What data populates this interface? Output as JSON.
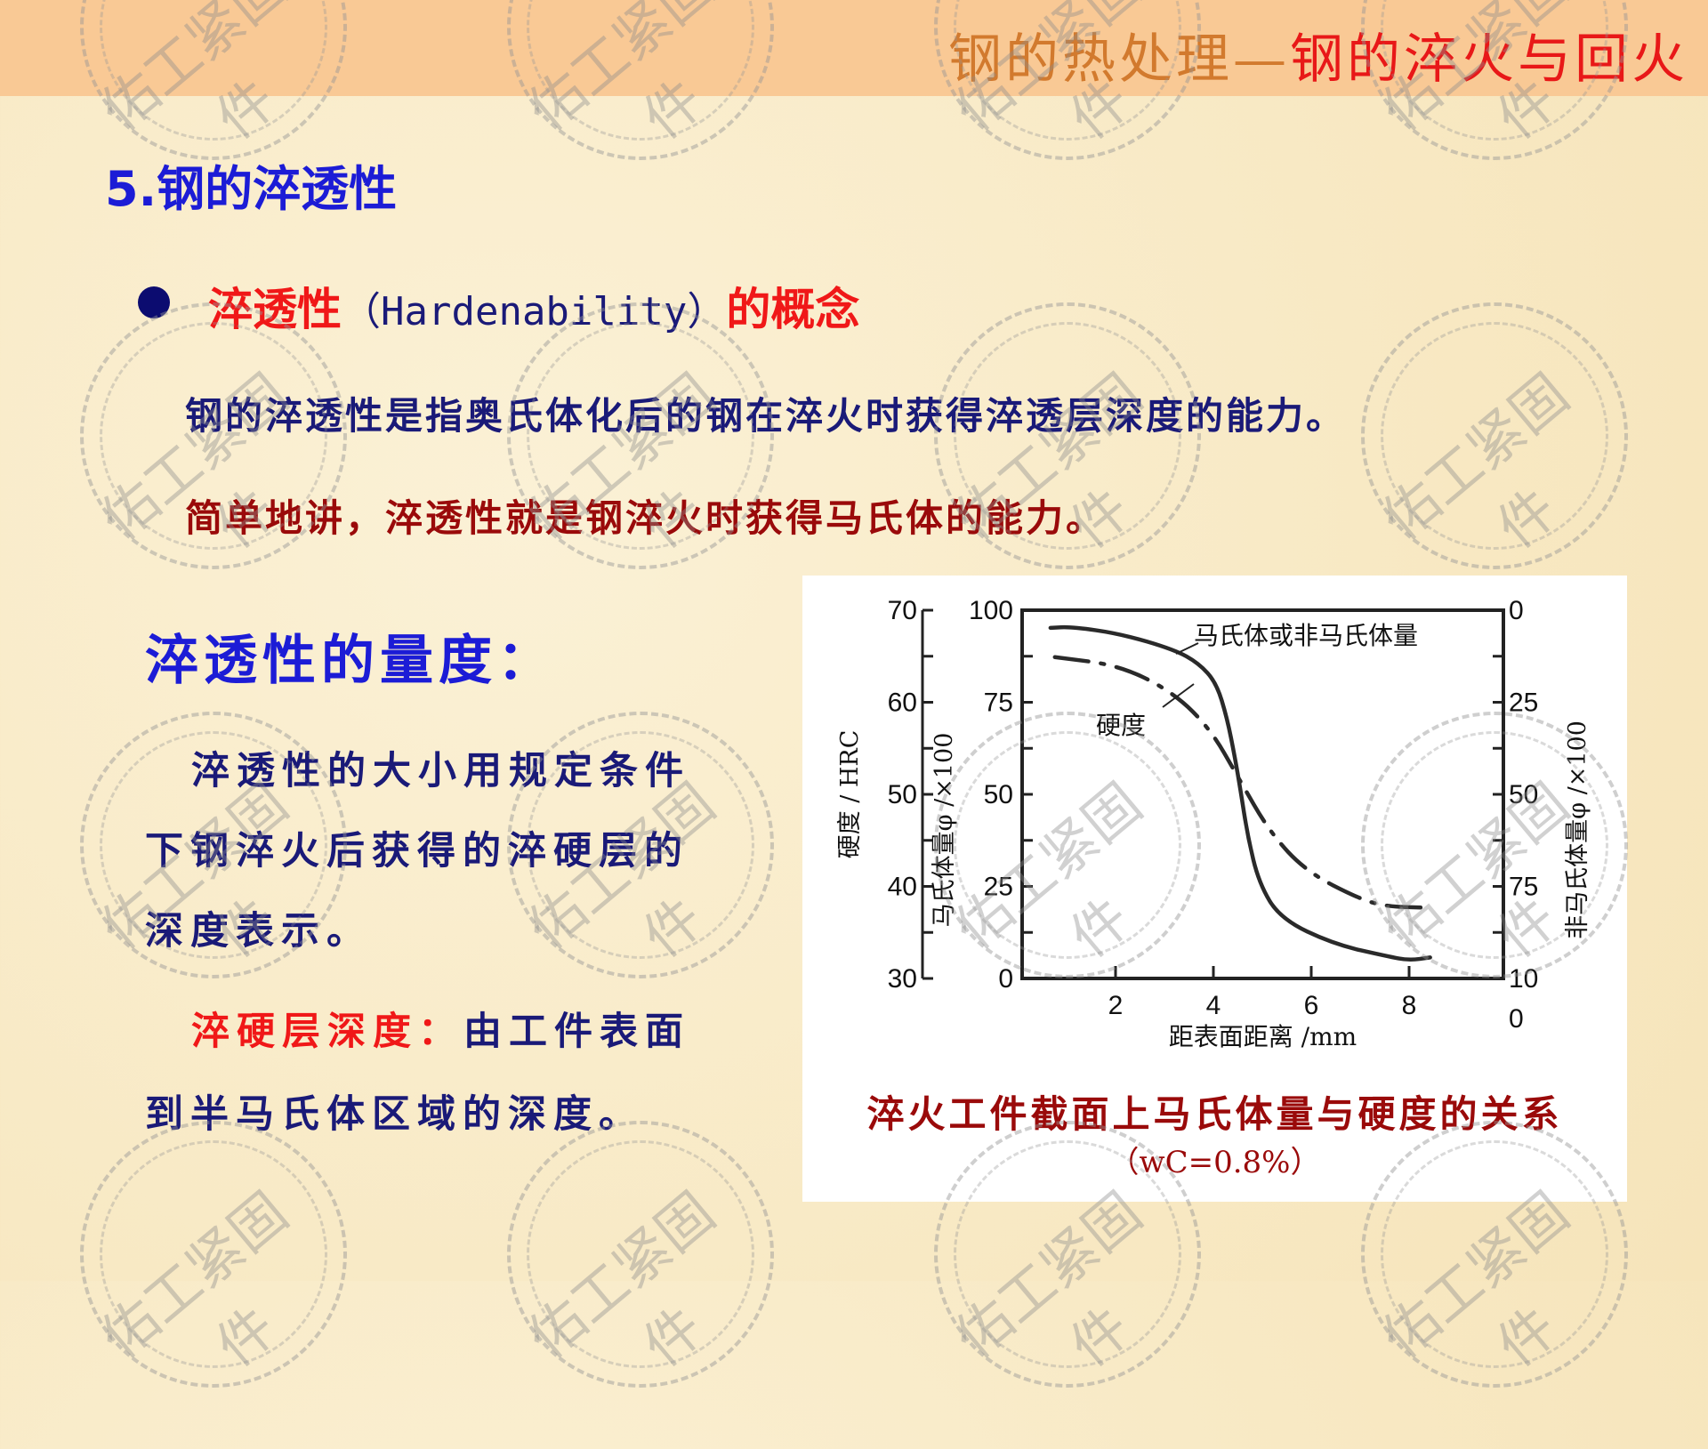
{
  "header": {
    "title_part1": "钢的热处理—",
    "title_part2": "钢的淬火与回火"
  },
  "section": {
    "title": "5.钢的淬透性"
  },
  "concept": {
    "red1": "淬透性",
    "mid": "（Hardenability）",
    "red2": "的概念"
  },
  "definition": {
    "line1": "钢的淬透性是指奥氏体化后的钢在淬火时获得淬透层深度的能力。",
    "line2": "简单地讲，淬透性就是钢淬火时获得马氏体的能力。"
  },
  "measure": {
    "title": "淬透性的量度：",
    "lines": [
      "淬透性的大小用规定条件",
      "下钢淬火后获得的淬硬层的",
      "深度表示。"
    ],
    "depth_label": "淬硬层深度：",
    "depth_text1": "由工件表面",
    "depth_text2": "到半马氏体区域的深度。"
  },
  "watermark": "佑工紧固件",
  "colors": {
    "header": "#f9c995",
    "title_part1": "#d27a2e",
    "accent_red": "#e81818",
    "blue": "#1c1cd6",
    "navy": "#1a1a78",
    "dark_red": "#9a0a0a"
  },
  "chart_data": {
    "type": "line",
    "xlabel": "距表面距离 /mm",
    "xticks": [
      2,
      4,
      6,
      8
    ],
    "xlim": [
      0,
      9.9
    ],
    "left_axis": {
      "label": "硬度 / HRC",
      "ticks": [
        30,
        40,
        50,
        60,
        70
      ],
      "ylim": [
        30,
        70
      ]
    },
    "inner_left_axis": {
      "label": "马氏体量φ /×100",
      "ticks": [
        0,
        25,
        50,
        75,
        100
      ],
      "ylim": [
        0,
        100
      ]
    },
    "right_axis": {
      "label": "非马氏体量φ /×100",
      "ticks": [
        0,
        25,
        50,
        75,
        100
      ],
      "ylim": [
        100,
        0
      ]
    },
    "series": [
      {
        "name": "马氏体或非马氏体量",
        "axis": "percent",
        "style": "solid",
        "x": [
          0.67,
          1.1,
          2.1,
          3.2,
          3.7,
          4.06,
          4.28,
          4.44,
          4.55,
          4.7,
          4.93,
          5.37,
          6.46,
          7.56,
          8.0,
          8.43
        ],
        "y": [
          95.2,
          95.5,
          93.6,
          89.3,
          85.6,
          80.3,
          70.7,
          60,
          51.5,
          38.7,
          25.9,
          16.2,
          9.3,
          6,
          4.9,
          5.7
        ]
      },
      {
        "name": "硬度",
        "axis": "HRC",
        "style": "dash-dot",
        "x": [
          0.76,
          2.1,
          3.2,
          3.95,
          4.5,
          5.15,
          5.9,
          7.0,
          7.56,
          8.3
        ],
        "y": [
          64.9,
          64,
          61,
          57,
          51.9,
          45.9,
          41.6,
          38.6,
          37.8,
          37.7
        ]
      }
    ],
    "caption": "淬火工件截面上马氏体量与硬度的关系",
    "subcaption": "（wC=0.8%）"
  }
}
